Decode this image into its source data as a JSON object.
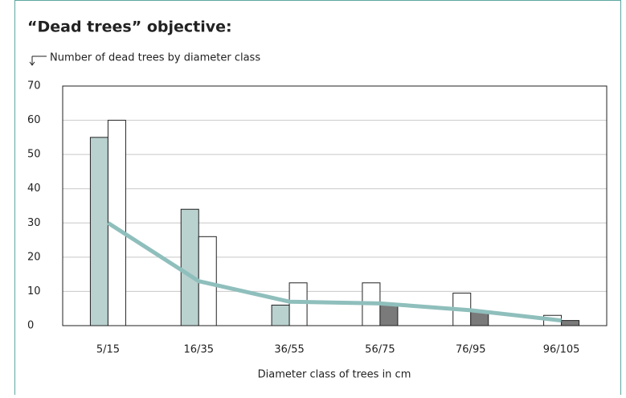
{
  "chart_data": {
    "type": "bar",
    "title": "“Dead trees” objective:",
    "subtitle": "Number of dead trees by diameter class",
    "x_label": "Diameter class of trees in cm",
    "categories": [
      "5/15",
      "16/35",
      "36/55",
      "56/75",
      "76/95",
      "96/105"
    ],
    "series": [
      {
        "color": "#b9d1cf",
        "values": [
          55,
          34,
          6,
          null,
          null,
          null
        ]
      },
      {
        "color": "#ffffff",
        "values": [
          60,
          26,
          12.5,
          12.5,
          9.5,
          3
        ]
      },
      {
        "color": "#7a7a7a",
        "values": [
          null,
          null,
          null,
          6,
          4,
          1.5
        ]
      }
    ],
    "line": {
      "color": "#8fbfbc",
      "values": [
        30,
        13,
        7,
        6.5,
        4.5,
        1.5
      ]
    },
    "ylim": [
      0,
      70
    ],
    "yticks": [
      0,
      10,
      20,
      30,
      40,
      50,
      60,
      70
    ],
    "grid": true
  }
}
